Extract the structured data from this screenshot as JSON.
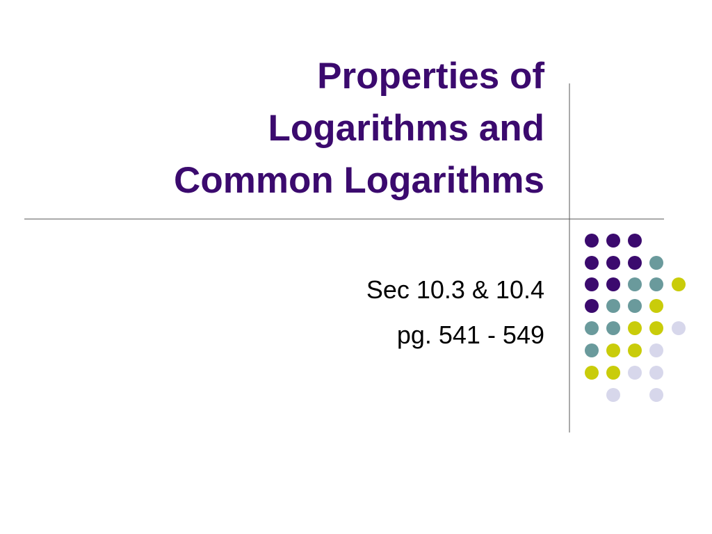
{
  "slide": {
    "title_lines": [
      "Properties of",
      "Logarithms and",
      "Common Logarithms"
    ],
    "subtitle_lines": [
      "Sec 10.3 & 10.4",
      "pg. 541 - 549"
    ]
  }
}
